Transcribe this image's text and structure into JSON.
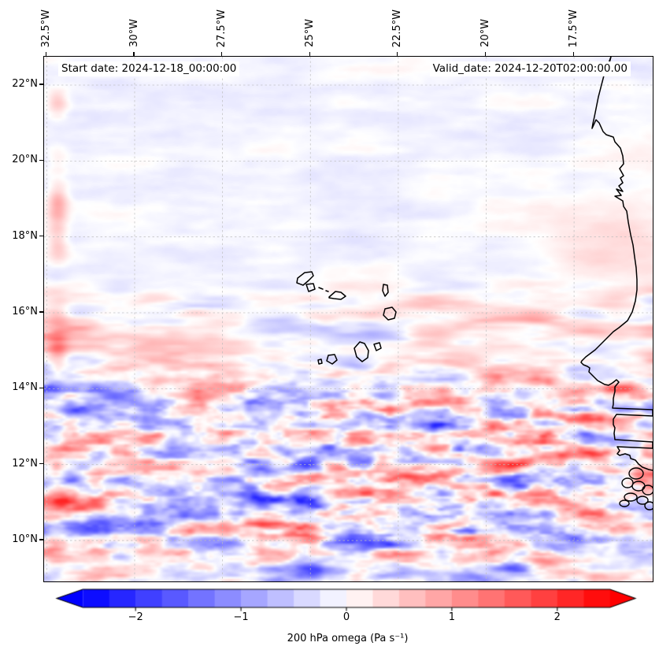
{
  "figure": {
    "start_annotation": "Start date: 2024-12-18_00:00:00",
    "valid_annotation": "Valid_date: 2024-12-20T02:00:00.00"
  },
  "axes": {
    "x": {
      "side": "top",
      "tick_labels": [
        "32.5°W",
        "30°W",
        "27.5°W",
        "25°W",
        "22.5°W",
        "20°W",
        "17.5°W"
      ],
      "tick_values": [
        -32.5,
        -30,
        -27.5,
        -25,
        -22.5,
        -20,
        -17.5
      ]
    },
    "y": {
      "side": "left",
      "tick_labels": [
        "22°N",
        "20°N",
        "18°N",
        "16°N",
        "14°N",
        "12°N",
        "10°N"
      ],
      "tick_values": [
        22,
        20,
        18,
        16,
        14,
        12,
        10
      ]
    },
    "grid": {
      "style": "dashed",
      "color": "#bdbdbd"
    }
  },
  "colorbar": {
    "label": "200 hPa omega (Pa s⁻¹)",
    "tick_labels": [
      "−2",
      "−1",
      "0",
      "1",
      "2"
    ],
    "tick_values": [
      -2,
      -1,
      0,
      1,
      2
    ],
    "vmin": -2.5,
    "vmax": 2.5,
    "extend": "both",
    "color_min": "#0000ff",
    "color_mid": "#ffffff",
    "color_max": "#ff0000",
    "n_bands": 20
  },
  "chart_data": {
    "type": "heatmap",
    "variable": "200 hPa omega",
    "units": "Pa s⁻¹",
    "annotations": [
      "Start date: 2024-12-18_00:00:00",
      "Valid_date: 2024-12-20T02:00:00.00"
    ],
    "colormap": "bwr (blue–white–red), discrete bands, extended arrows both ends",
    "value_range": [
      -2.5,
      2.5
    ],
    "colorbar_ticks": [
      -2,
      -1,
      0,
      1,
      2
    ],
    "extent": {
      "lon_min": -32.6,
      "lon_max": -15.3,
      "lat_min": 9.0,
      "lat_max": 22.8
    },
    "x_ticks_deg_west": [
      32.5,
      30,
      27.5,
      25,
      22.5,
      20,
      17.5
    ],
    "y_ticks_deg_north": [
      22,
      20,
      18,
      16,
      14,
      12,
      10
    ],
    "grid": "dashed gray graticule at tick positions",
    "map_features": [
      "West African coastline from Western Sahara through Mauritania, Senegal (Cap-Vert/Dakar peninsula), Gambia and Casamance rivers, to Guinea-Bissau with Bijagós islands",
      "Cape Verde archipelago outlines (Santo Antão, São Vicente, São Nicolau, Sal, Boa Vista, Maio, Santiago, Fogo, Brava)"
    ],
    "pattern_summary": [
      "North of ~17°N: very weak omega, faint pale blue/pink diagonal blobs",
      "Narrow red (subsidence) vertical streak hugging the west edge near 32°W for most latitudes",
      "Between ~14.5°N and 16.5°N: long zonally-elongated alternating red/blue streaks",
      "South of ~14.5°N: strong high-frequency mottled red/blue wave field (gravity-wave-like), strongest 10–14°N in the central/eastern half",
      "Light pink enhancement along the African coast near 18–20°N"
    ]
  }
}
